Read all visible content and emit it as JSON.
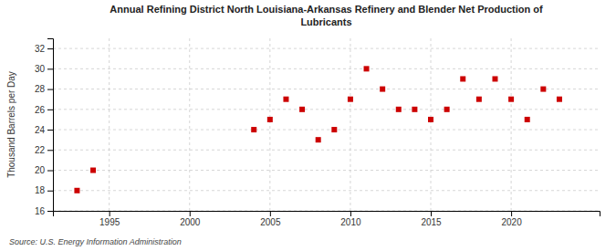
{
  "chart_data": {
    "type": "scatter",
    "title": "Annual Refining District North Louisiana-Arkansas Refinery and Blender Net Production of\nLubricants",
    "ylabel": "Thousand Barrels per Day",
    "source": "Source: U.S. Energy Information Administration",
    "color": "#cc0000",
    "marker": "square",
    "grid": true,
    "xlim": [
      1991.5,
      2025.5
    ],
    "xticks": [
      1995,
      2000,
      2005,
      2010,
      2015,
      2020
    ],
    "ylim": [
      16,
      33
    ],
    "yticks": [
      16,
      18,
      20,
      22,
      24,
      26,
      28,
      30,
      32
    ],
    "x": [
      1993,
      1994,
      2004,
      2005,
      2006,
      2007,
      2008,
      2009,
      2010,
      2011,
      2012,
      2013,
      2014,
      2015,
      2016,
      2017,
      2018,
      2019,
      2020,
      2021,
      2022,
      2023
    ],
    "values": [
      18,
      20,
      24,
      25,
      27,
      26,
      23,
      24,
      27,
      30,
      28,
      26,
      26,
      25,
      26,
      29,
      27,
      29,
      27,
      25,
      28,
      27
    ]
  }
}
